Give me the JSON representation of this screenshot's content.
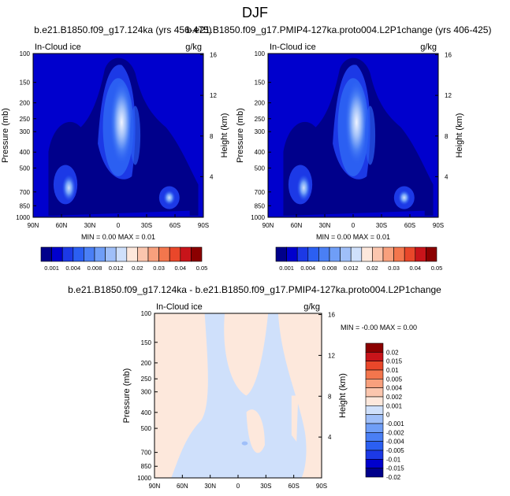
{
  "page_title": "DJF",
  "colors": {
    "mean_scale": [
      "#00008b",
      "#0000cd",
      "#1c39e6",
      "#2b5ff2",
      "#4a7ff5",
      "#6f9ef7",
      "#9fbff9",
      "#cfe0fb",
      "#fde8dc",
      "#fbc6ae",
      "#f8a07d",
      "#f3764d",
      "#e9472a",
      "#c8141a",
      "#8b0000"
    ],
    "diff_scale": [
      "#00008b",
      "#0000cd",
      "#1c39e6",
      "#2b5ff2",
      "#4a7ff5",
      "#6f9ef7",
      "#9fbff9",
      "#cfe0fb",
      "#fde8dc",
      "#fbc6ae",
      "#f8a07d",
      "#f3764d",
      "#e9472a",
      "#c8141a",
      "#8b0000"
    ]
  },
  "chart_data": [
    {
      "type": "heatmap",
      "title": "b.e21.B1850.f09_g17.124ka (yrs 456-475)",
      "left_label": "In-Cloud ice",
      "right_label": "g/kg",
      "ylabel": "Pressure (mb)",
      "ylabel_right": "Height (km)",
      "xticks": [
        "90N",
        "60N",
        "30N",
        "0",
        "30S",
        "60S",
        "90S"
      ],
      "yticks": [
        "100",
        "150",
        "200",
        "250",
        "300",
        "400",
        "500",
        "700",
        "850",
        "1000"
      ],
      "yticks_right": [
        "16",
        "12",
        "8",
        "4"
      ],
      "stats": "MIN =   0.00   MAX =   0.01",
      "colorbar": [
        "0.001",
        "0.004",
        "0.008",
        "0.012",
        "0.02",
        "0.03",
        "0.04",
        "0.05"
      ]
    },
    {
      "type": "heatmap",
      "title": "b.e21.B1850.f09_g17.PMIP4-127ka.proto004.L2P1change (yrs 406-425)",
      "left_label": "In-Cloud ice",
      "right_label": "g/kg",
      "ylabel": "Pressure (mb)",
      "ylabel_right": "Height (km)",
      "xticks": [
        "90N",
        "60N",
        "30N",
        "0",
        "30S",
        "60S",
        "90S"
      ],
      "yticks": [
        "100",
        "150",
        "200",
        "250",
        "300",
        "400",
        "500",
        "700",
        "850",
        "1000"
      ],
      "yticks_right": [
        "16",
        "12",
        "8",
        "4"
      ],
      "stats": "MIN =   0.00   MAX =   0.01",
      "colorbar": [
        "0.001",
        "0.004",
        "0.008",
        "0.012",
        "0.02",
        "0.03",
        "0.04",
        "0.05"
      ]
    },
    {
      "type": "heatmap",
      "title": "b.e21.B1850.f09_g17.124ka - b.e21.B1850.f09_g17.PMIP4-127ka.proto004.L2P1change",
      "left_label": "In-Cloud ice",
      "right_label": "g/kg",
      "ylabel": "Pressure (mb)",
      "ylabel_right": "Height (km)",
      "xticks": [
        "90N",
        "60N",
        "30N",
        "0",
        "30S",
        "60S",
        "90S"
      ],
      "yticks": [
        "100",
        "150",
        "200",
        "250",
        "300",
        "400",
        "500",
        "700",
        "850",
        "1000"
      ],
      "yticks_right": [
        "16",
        "12",
        "8",
        "4"
      ],
      "stats": "MIN =  -0.00   MAX =   0.00",
      "colorbar": [
        "0.02",
        "0.015",
        "0.01",
        "0.005",
        "0.004",
        "0.002",
        "0.001",
        "0",
        "-0.001",
        "-0.002",
        "-0.004",
        "-0.005",
        "-0.01",
        "-0.015",
        "-0.02"
      ]
    }
  ]
}
